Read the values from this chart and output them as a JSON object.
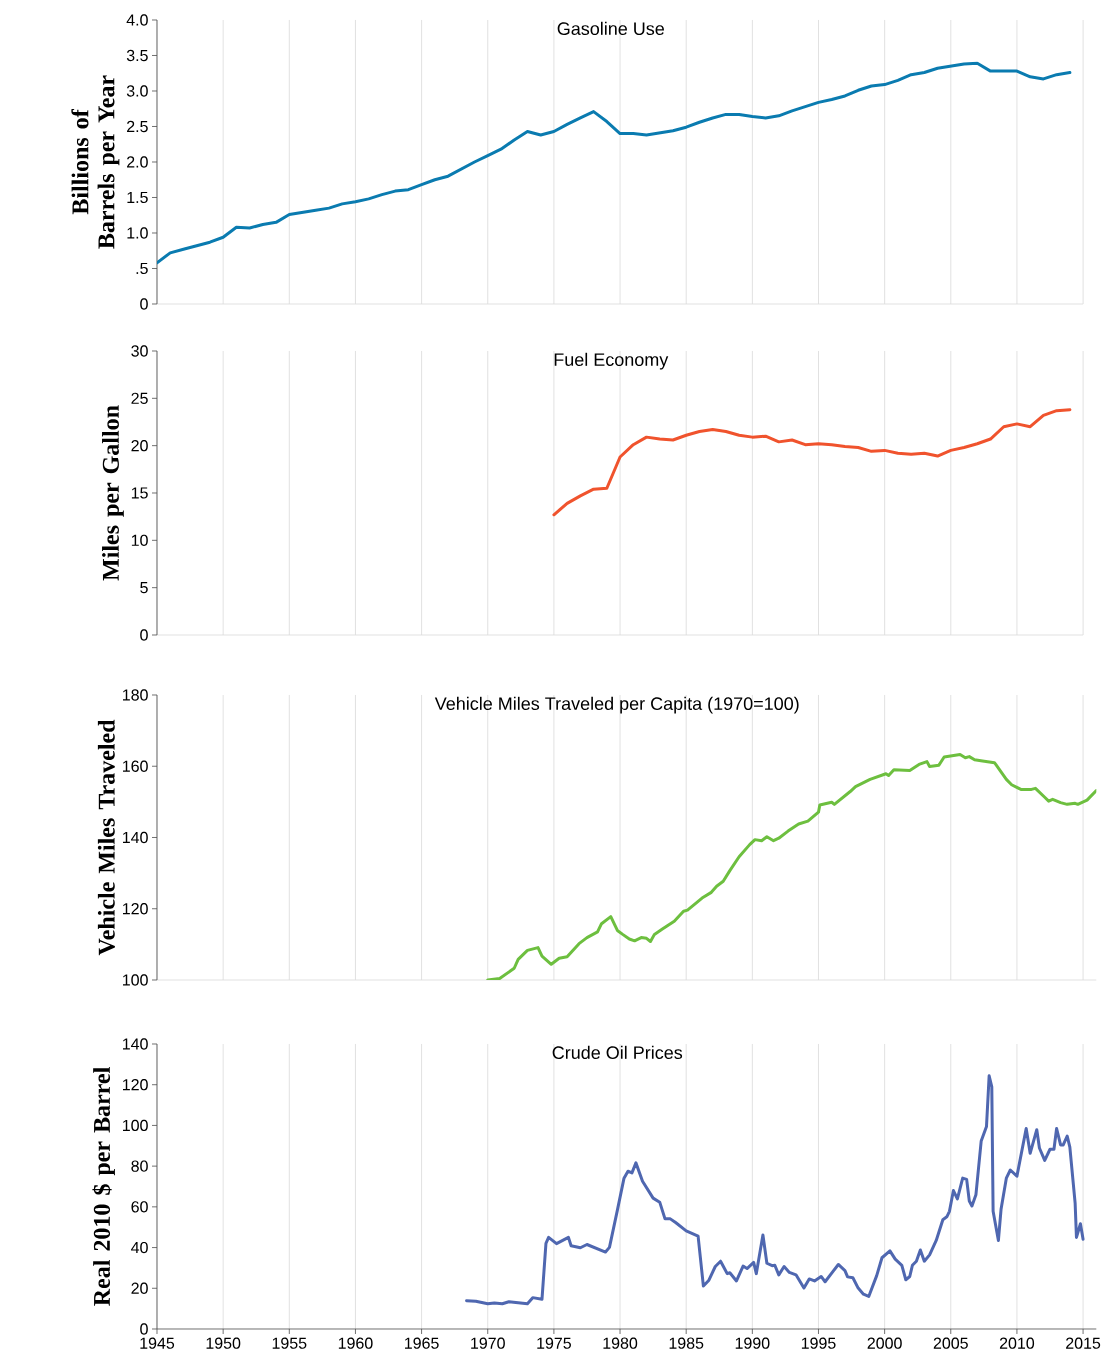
{
  "chart_data": [
    {
      "type": "line",
      "title": "Gasoline Use",
      "ylabel": "Billions of Barrels per Year",
      "x": [
        1945,
        1946,
        1947,
        1948,
        1949,
        1950,
        1951,
        1952,
        1953,
        1954,
        1955,
        1956,
        1957,
        1958,
        1959,
        1960,
        1961,
        1962,
        1963,
        1964,
        1965,
        1966,
        1967,
        1968,
        1969,
        1970,
        1971,
        1972,
        1973,
        1974,
        1975,
        1976,
        1977,
        1978,
        1979,
        1980,
        1981,
        1982,
        1983,
        1984,
        1985,
        1986,
        1987,
        1988,
        1989,
        1990,
        1991,
        1992,
        1993,
        1994,
        1995,
        1996,
        1997,
        1998,
        1999,
        2000,
        2001,
        2002,
        2003,
        2004,
        2005,
        2006,
        2007,
        2008,
        2009,
        2010,
        2011,
        2012,
        2013,
        2014
      ],
      "series": [
        {
          "color": "#0a7bb0",
          "values": [
            0.58,
            0.72,
            0.77,
            0.82,
            0.87,
            0.94,
            1.08,
            1.07,
            1.12,
            1.15,
            1.26,
            1.29,
            1.32,
            1.35,
            1.41,
            1.44,
            1.48,
            1.54,
            1.59,
            1.61,
            1.68,
            1.75,
            1.8,
            1.9,
            2.0,
            2.09,
            2.18,
            2.31,
            2.43,
            2.38,
            2.43,
            2.53,
            2.62,
            2.71,
            2.57,
            2.4,
            2.4,
            2.38,
            2.41,
            2.44,
            2.49,
            2.56,
            2.62,
            2.67,
            2.67,
            2.64,
            2.62,
            2.65,
            2.72,
            2.78,
            2.84,
            2.88,
            2.93,
            3.01,
            3.07,
            3.09,
            3.15,
            3.23,
            3.26,
            3.32,
            3.35,
            3.38,
            3.39,
            3.28,
            3.28,
            3.28,
            3.2,
            3.17,
            3.23,
            3.26
          ]
        }
      ],
      "xlim": [
        1945,
        2015
      ],
      "xticks": [
        1945,
        1950,
        1955,
        1960,
        1965,
        1970,
        1975,
        1980,
        1985,
        1990,
        1995,
        2000,
        2005,
        2010,
        2015
      ],
      "ylim": [
        0,
        4
      ],
      "yticks": [
        0,
        {
          "value": 0.5,
          "label": ".5"
        },
        {
          "value": 1,
          "label": "1.0"
        },
        1.5,
        {
          "value": 2,
          "label": "2.0"
        },
        2.5,
        {
          "value": 3,
          "label": "3.0"
        },
        3.5,
        {
          "value": 4,
          "label": "4.0"
        }
      ],
      "grid": "x",
      "tick_labels": "y"
    },
    {
      "type": "line",
      "title": "Fuel Economy",
      "ylabel": "Miles per Gallon",
      "x": [
        1975,
        1976,
        1977,
        1978,
        1979,
        1980,
        1981,
        1982,
        1983,
        1984,
        1985,
        1986,
        1987,
        1988,
        1989,
        1990,
        1991,
        1992,
        1993,
        1994,
        1995,
        1996,
        1997,
        1998,
        1999,
        2000,
        2001,
        2002,
        2003,
        2004,
        2005,
        2006,
        2007,
        2008,
        2009,
        2010,
        2011,
        2012,
        2013,
        2014
      ],
      "series": [
        {
          "color": "#f0532d",
          "values": [
            12.7,
            13.9,
            14.7,
            15.4,
            15.5,
            18.8,
            20.1,
            20.9,
            20.7,
            20.6,
            21.1,
            21.5,
            21.7,
            21.5,
            21.1,
            20.9,
            21.0,
            20.4,
            20.6,
            20.1,
            20.2,
            20.1,
            19.9,
            19.8,
            19.4,
            19.5,
            19.2,
            19.1,
            19.2,
            18.9,
            19.5,
            19.8,
            20.2,
            20.7,
            22.0,
            22.3,
            22.0,
            23.2,
            23.7,
            23.8
          ]
        }
      ],
      "xlim": [
        1945,
        2015
      ],
      "xticks": [
        1945,
        1950,
        1955,
        1960,
        1965,
        1970,
        1975,
        1980,
        1985,
        1990,
        1995,
        2000,
        2005,
        2010,
        2015
      ],
      "ylim": [
        0,
        30
      ],
      "yticks": [
        0,
        5,
        10,
        15,
        20,
        25,
        30
      ],
      "grid": "x",
      "tick_labels": "y"
    },
    {
      "type": "line",
      "title": "Vehicle Miles Traveled per Capita (1970=100)",
      "ylabel": "Vehicle Miles Traveled",
      "x": [
        1970.0,
        1970.9,
        1972.0,
        1972.3,
        1973.0,
        1973.8,
        1974.1,
        1974.8,
        1975.4,
        1976.0,
        1976.9,
        1977.5,
        1978.3,
        1978.6,
        1979.3,
        1979.8,
        1980.2,
        1980.7,
        1981.1,
        1981.6,
        1982.0,
        1982.3,
        1982.6,
        1983.2,
        1984.1,
        1984.8,
        1985.1,
        1986.2,
        1986.9,
        1987.3,
        1987.8,
        1988.3,
        1989.0,
        1989.8,
        1990.2,
        1990.7,
        1991.1,
        1991.6,
        1992.0,
        1992.7,
        1993.5,
        1994.2,
        1995.0,
        1995.1,
        1996.0,
        1996.2,
        1997.4,
        1997.8,
        1998.9,
        2000.1,
        2000.3,
        2000.7,
        2001.9,
        2002.6,
        2003.2,
        2003.4,
        2004.1,
        2004.5,
        2005.7,
        2006.1,
        2006.4,
        2006.8,
        2007.4,
        2008.3,
        2008.4,
        2009.2,
        2009.6,
        2010.3,
        2011.1,
        2011.4,
        2012.1,
        2012.4,
        2012.7,
        2013.3,
        2013.8,
        2014.4,
        2014.6,
        2015.3,
        2016.0
      ],
      "series": [
        {
          "color": "#6dbf3f",
          "values": [
            100.0,
            100.4,
            103.3,
            105.8,
            108.3,
            109.1,
            106.7,
            104.4,
            106.1,
            106.5,
            110.2,
            111.9,
            113.5,
            115.8,
            117.8,
            113.9,
            112.8,
            111.5,
            111.0,
            111.9,
            111.7,
            110.8,
            112.8,
            114.3,
            116.5,
            119.3,
            119.6,
            123.0,
            124.6,
            126.3,
            127.7,
            130.7,
            134.6,
            138.0,
            139.4,
            139.1,
            140.2,
            139.1,
            139.8,
            141.8,
            143.8,
            144.6,
            147.1,
            149.1,
            149.9,
            149.3,
            152.9,
            154.3,
            156.3,
            157.9,
            157.4,
            159.0,
            158.8,
            160.5,
            161.3,
            159.9,
            160.3,
            162.6,
            163.3,
            162.4,
            162.7,
            161.8,
            161.5,
            161.0,
            160.5,
            156.3,
            154.8,
            153.5,
            153.5,
            153.8,
            151.3,
            150.2,
            150.7,
            149.8,
            149.3,
            149.6,
            149.3,
            150.5,
            153.2
          ]
        }
      ],
      "xlim": [
        1945,
        2016
      ],
      "xticks": [
        1945,
        1950,
        1955,
        1960,
        1965,
        1970,
        1975,
        1980,
        1985,
        1990,
        1995,
        2000,
        2005,
        2010,
        2015
      ],
      "ylim": [
        100,
        180
      ],
      "yticks": [
        100,
        120,
        140,
        160,
        180
      ],
      "grid": "x",
      "tick_labels": "y"
    },
    {
      "type": "line",
      "title": "Crude Oil Prices",
      "ylabel": "Real 2010 $ per Barrel",
      "x": [
        1968.4,
        1969.1,
        1970.0,
        1970.5,
        1971.1,
        1971.6,
        1973.0,
        1973.4,
        1974.1,
        1974.4,
        1974.6,
        1975.2,
        1976.1,
        1976.3,
        1977.0,
        1977.5,
        1978.9,
        1979.2,
        1979.8,
        1980.3,
        1980.6,
        1980.9,
        1981.2,
        1981.7,
        1982.5,
        1983.0,
        1983.4,
        1983.8,
        1984.2,
        1985.0,
        1985.9,
        1986.3,
        1986.7,
        1987.2,
        1987.6,
        1988.1,
        1988.3,
        1988.8,
        1989.3,
        1989.6,
        1990.1,
        1990.3,
        1990.8,
        1991.1,
        1991.5,
        1991.7,
        1992.0,
        1992.4,
        1992.8,
        1993.3,
        1993.9,
        1994.3,
        1994.7,
        1995.2,
        1995.5,
        1996.1,
        1996.5,
        1997.0,
        1997.2,
        1997.6,
        1998.0,
        1998.4,
        1998.8,
        1999.4,
        1999.8,
        2000.4,
        2000.8,
        2001.3,
        2001.6,
        2001.9,
        2002.1,
        2002.4,
        2002.7,
        2003.0,
        2003.4,
        2003.9,
        2004.4,
        2004.7,
        2004.9,
        2005.2,
        2005.5,
        2005.9,
        2006.2,
        2006.4,
        2006.6,
        2006.9,
        2007.3,
        2007.7,
        2007.9,
        2008.1,
        2008.2,
        2008.6,
        2008.8,
        2009.2,
        2009.5,
        2010.0,
        2010.7,
        2011.0,
        2011.5,
        2011.7,
        2012.1,
        2012.5,
        2012.8,
        2013.0,
        2013.3,
        2013.5,
        2013.8,
        2014.0,
        2014.4,
        2014.5,
        2014.8,
        2015.0
      ],
      "series": [
        {
          "color": "#4f67b0",
          "values": [
            13.9,
            13.6,
            12.4,
            12.8,
            12.4,
            13.4,
            12.4,
            15.4,
            14.6,
            42.1,
            45.0,
            41.9,
            45.0,
            40.9,
            39.9,
            41.5,
            37.8,
            40.1,
            58.4,
            74.1,
            77.5,
            76.7,
            81.6,
            72.6,
            64.3,
            62.3,
            54.1,
            54.1,
            52.3,
            48.2,
            45.6,
            21.1,
            23.8,
            30.7,
            33.3,
            27.2,
            27.6,
            23.6,
            30.9,
            29.7,
            32.7,
            27.2,
            46.2,
            32.3,
            31.1,
            31.3,
            26.6,
            30.7,
            27.8,
            26.6,
            20.1,
            24.6,
            23.6,
            25.8,
            23.2,
            28.3,
            31.7,
            28.7,
            25.6,
            25.2,
            20.1,
            17.1,
            16.0,
            26.2,
            35.0,
            38.4,
            34.3,
            31.3,
            24.2,
            25.8,
            31.3,
            33.3,
            38.8,
            33.3,
            36.4,
            43.5,
            53.7,
            55.1,
            57.8,
            68.0,
            63.9,
            74.1,
            73.5,
            62.9,
            60.4,
            65.9,
            92.4,
            99.5,
            124.4,
            118.9,
            57.8,
            43.5,
            58.8,
            74.1,
            78.1,
            75.1,
            98.5,
            86.3,
            97.9,
            88.9,
            82.8,
            88.3,
            88.3,
            98.5,
            90.4,
            90.4,
            94.8,
            89.3,
            61.8,
            45.0,
            51.7,
            44.1
          ]
        }
      ],
      "xlim": [
        1945,
        2016
      ],
      "xticks": [
        1945,
        1950,
        1955,
        1960,
        1965,
        1970,
        1975,
        1980,
        1985,
        1990,
        1995,
        2000,
        2005,
        2010,
        2015
      ],
      "ylim": [
        0,
        140
      ],
      "yticks": [
        0,
        20,
        40,
        60,
        80,
        100,
        120,
        140
      ],
      "grid": "x"
    }
  ]
}
